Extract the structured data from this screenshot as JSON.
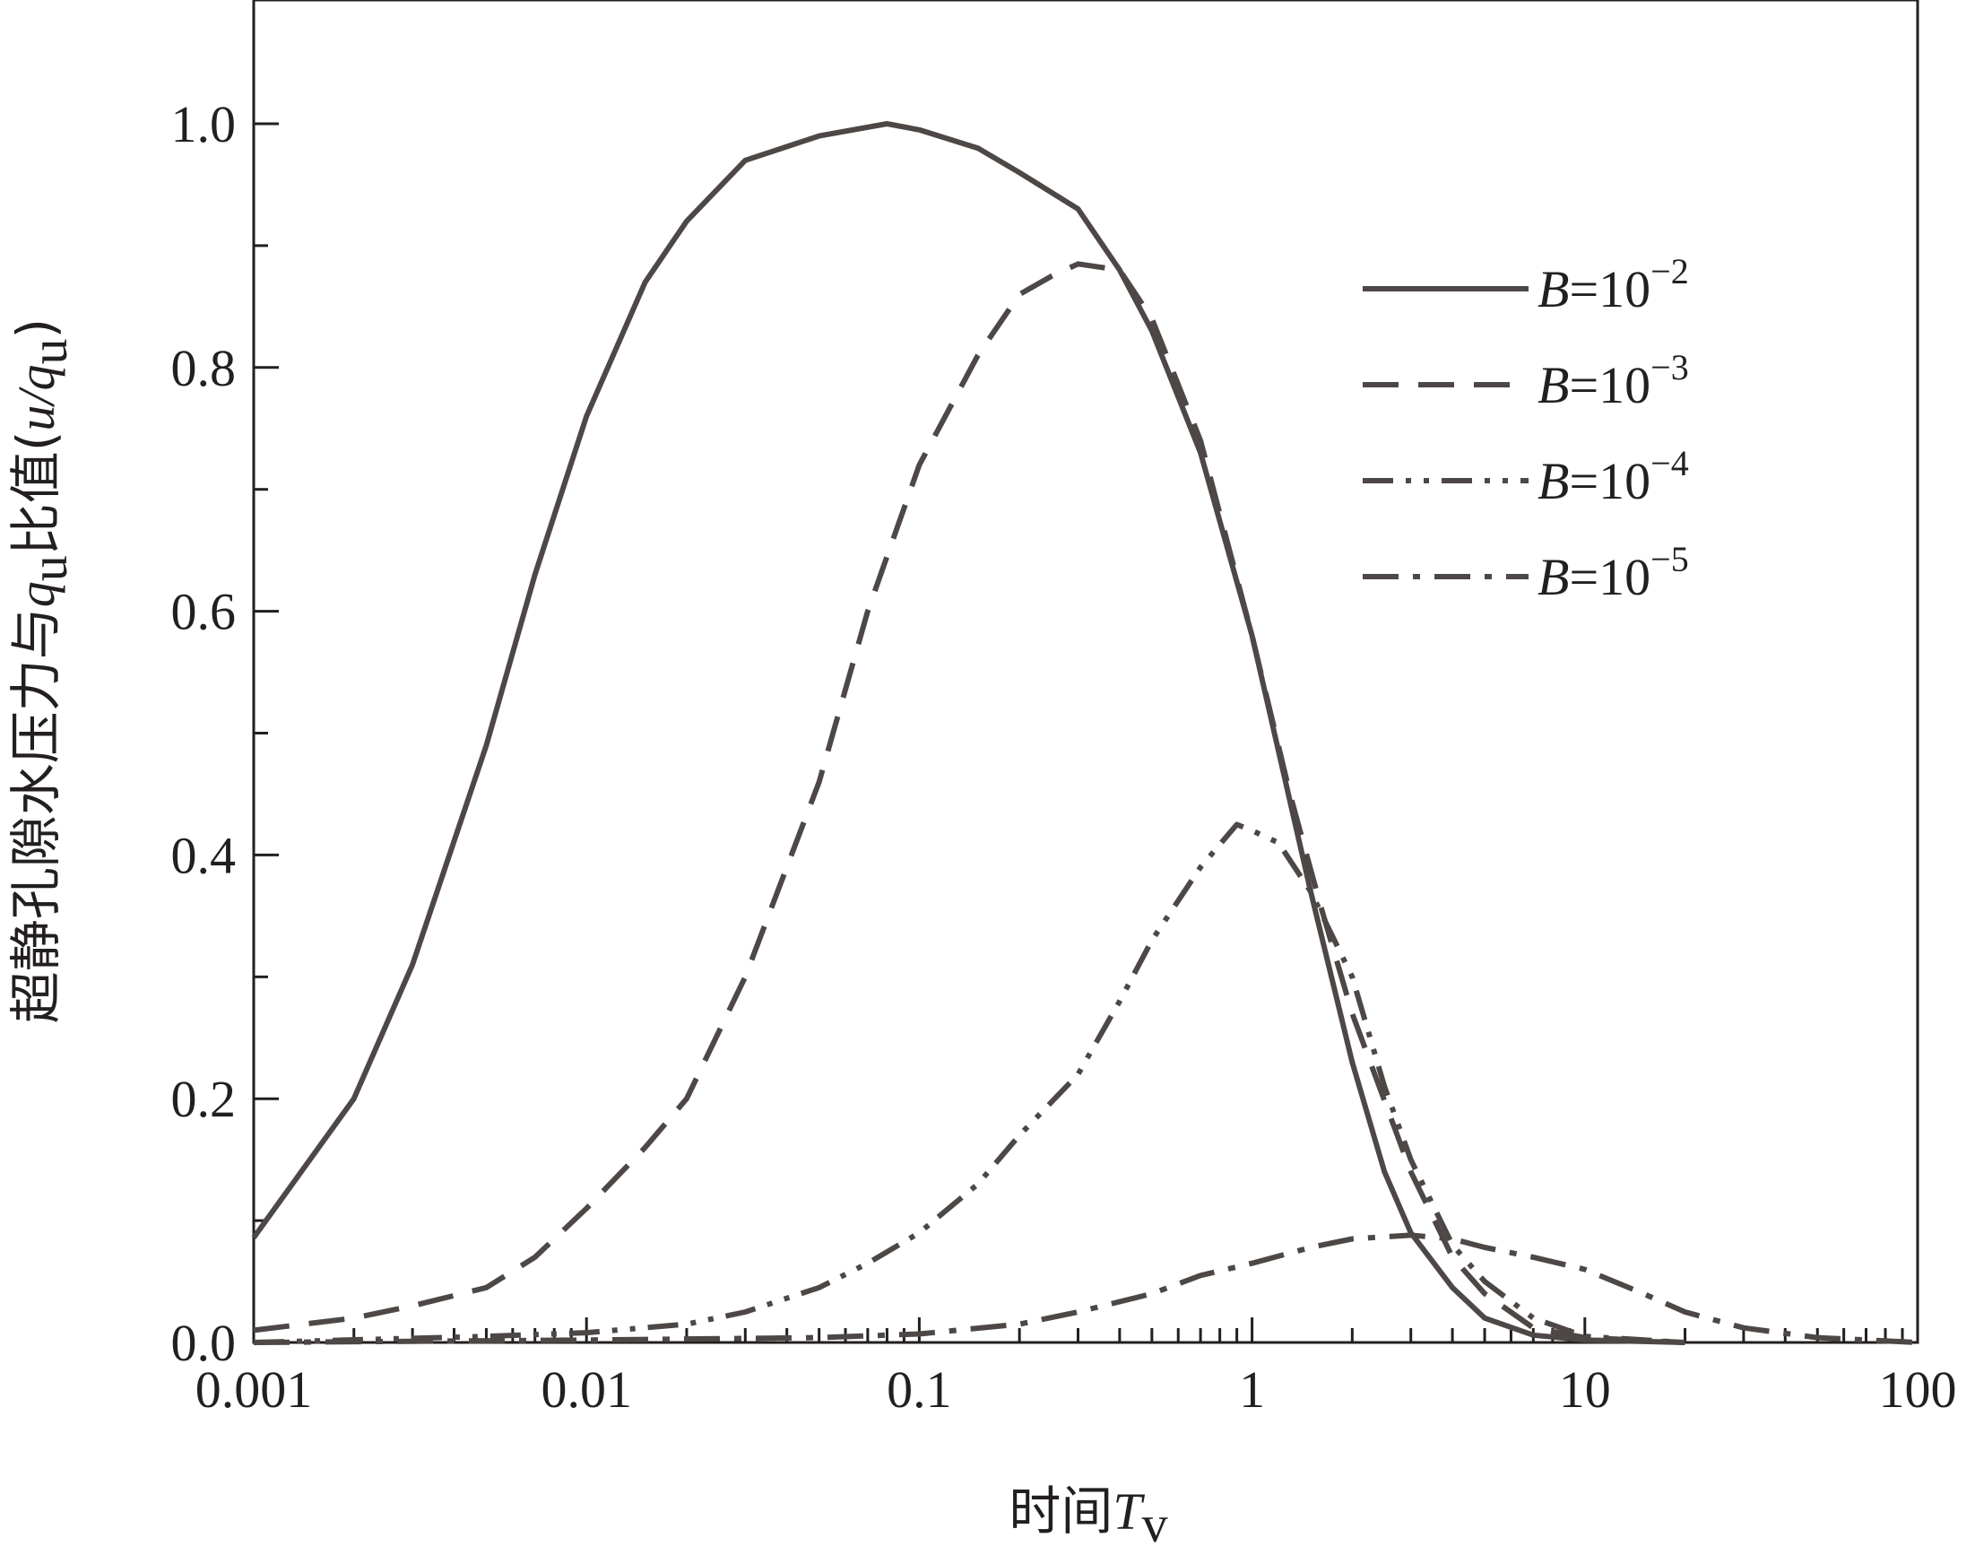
{
  "chart_data": {
    "type": "line",
    "xlabel": {
      "prefix": "时间",
      "symbol": "T",
      "sub": "v"
    },
    "ylabel": {
      "prefix": "超静孔隙水压力与",
      "q": "q",
      "q_sub": "u",
      "mid": "比值(",
      "u": "u",
      "slash": "/",
      "q2": "q",
      "q2_sub": "u",
      "close": ")"
    },
    "x_scale": "log",
    "xlim": [
      0.001,
      100
    ],
    "ylim": [
      0,
      1.1
    ],
    "x_ticks": [
      0.001,
      0.01,
      0.1,
      1,
      10,
      100
    ],
    "x_tick_labels": [
      "0.001",
      "0.01",
      "0.1",
      "1",
      "10",
      "100"
    ],
    "y_ticks": [
      0,
      0.2,
      0.4,
      0.6,
      0.8,
      1.0
    ],
    "y_tick_labels": [
      "0.0",
      "0.2",
      "0.4",
      "0.6",
      "0.8",
      "1.0"
    ],
    "legend_position": "top-right",
    "line_color": "#4d4846",
    "series": [
      {
        "name": "B=10−2",
        "label_var": "B",
        "label_eq": "=10",
        "label_exp": "−2",
        "dash": "solid",
        "points": [
          [
            0.001,
            0.086
          ],
          [
            0.002,
            0.2
          ],
          [
            0.003,
            0.31
          ],
          [
            0.005,
            0.49
          ],
          [
            0.007,
            0.63
          ],
          [
            0.01,
            0.76
          ],
          [
            0.015,
            0.87
          ],
          [
            0.02,
            0.92
          ],
          [
            0.03,
            0.97
          ],
          [
            0.05,
            0.99
          ],
          [
            0.08,
            1.0
          ],
          [
            0.1,
            0.995
          ],
          [
            0.15,
            0.98
          ],
          [
            0.2,
            0.96
          ],
          [
            0.3,
            0.93
          ],
          [
            0.4,
            0.88
          ],
          [
            0.5,
            0.83
          ],
          [
            0.7,
            0.73
          ],
          [
            1.0,
            0.58
          ],
          [
            1.5,
            0.37
          ],
          [
            2.0,
            0.23
          ],
          [
            2.5,
            0.14
          ],
          [
            3.0,
            0.09
          ],
          [
            4.0,
            0.045
          ],
          [
            5.0,
            0.02
          ],
          [
            7.0,
            0.006
          ],
          [
            10.0,
            0.002
          ],
          [
            20.0,
            0.0
          ]
        ]
      },
      {
        "name": "B=10−3",
        "label_var": "B",
        "label_eq": "=10",
        "label_exp": "−3",
        "dash": "dashed",
        "points": [
          [
            0.001,
            0.01
          ],
          [
            0.002,
            0.02
          ],
          [
            0.003,
            0.03
          ],
          [
            0.005,
            0.045
          ],
          [
            0.007,
            0.07
          ],
          [
            0.01,
            0.11
          ],
          [
            0.015,
            0.16
          ],
          [
            0.02,
            0.2
          ],
          [
            0.03,
            0.3
          ],
          [
            0.05,
            0.46
          ],
          [
            0.07,
            0.6
          ],
          [
            0.1,
            0.72
          ],
          [
            0.15,
            0.81
          ],
          [
            0.2,
            0.86
          ],
          [
            0.25,
            0.875
          ],
          [
            0.3,
            0.885
          ],
          [
            0.4,
            0.88
          ],
          [
            0.5,
            0.84
          ],
          [
            0.7,
            0.74
          ],
          [
            1.0,
            0.58
          ],
          [
            1.3,
            0.45
          ],
          [
            1.6,
            0.36
          ],
          [
            2.0,
            0.27
          ],
          [
            3.0,
            0.14
          ],
          [
            4.0,
            0.07
          ],
          [
            5.0,
            0.04
          ],
          [
            7.0,
            0.012
          ],
          [
            10.0,
            0.004
          ],
          [
            20.0,
            0.0
          ]
        ]
      },
      {
        "name": "B=10−4",
        "label_var": "B",
        "label_eq": "=10",
        "label_exp": "−4",
        "dash": "dash-dot-dot",
        "points": [
          [
            0.001,
            0.0
          ],
          [
            0.005,
            0.005
          ],
          [
            0.01,
            0.008
          ],
          [
            0.02,
            0.015
          ],
          [
            0.03,
            0.025
          ],
          [
            0.05,
            0.045
          ],
          [
            0.07,
            0.065
          ],
          [
            0.1,
            0.09
          ],
          [
            0.15,
            0.13
          ],
          [
            0.2,
            0.17
          ],
          [
            0.3,
            0.22
          ],
          [
            0.4,
            0.28
          ],
          [
            0.5,
            0.33
          ],
          [
            0.7,
            0.39
          ],
          [
            0.9,
            0.425
          ],
          [
            1.0,
            0.42
          ],
          [
            1.2,
            0.41
          ],
          [
            1.5,
            0.37
          ],
          [
            2.0,
            0.3
          ],
          [
            2.5,
            0.21
          ],
          [
            3.0,
            0.15
          ],
          [
            4.0,
            0.08
          ],
          [
            5.0,
            0.05
          ],
          [
            7.0,
            0.02
          ],
          [
            10.0,
            0.005
          ],
          [
            20.0,
            0.0
          ]
        ]
      },
      {
        "name": "B=10−5",
        "label_var": "B",
        "label_eq": "=10",
        "label_exp": "−5",
        "dash": "dash-dot",
        "points": [
          [
            0.001,
            0.0
          ],
          [
            0.01,
            0.002
          ],
          [
            0.05,
            0.004
          ],
          [
            0.1,
            0.007
          ],
          [
            0.2,
            0.015
          ],
          [
            0.3,
            0.025
          ],
          [
            0.5,
            0.04
          ],
          [
            0.7,
            0.055
          ],
          [
            1.0,
            0.065
          ],
          [
            1.5,
            0.078
          ],
          [
            2.0,
            0.085
          ],
          [
            3.0,
            0.088
          ],
          [
            4.0,
            0.085
          ],
          [
            5.0,
            0.078
          ],
          [
            7.0,
            0.07
          ],
          [
            10.0,
            0.06
          ],
          [
            15.0,
            0.04
          ],
          [
            20.0,
            0.025
          ],
          [
            30.0,
            0.012
          ],
          [
            50.0,
            0.004
          ],
          [
            100.0,
            0.0
          ]
        ]
      }
    ]
  }
}
